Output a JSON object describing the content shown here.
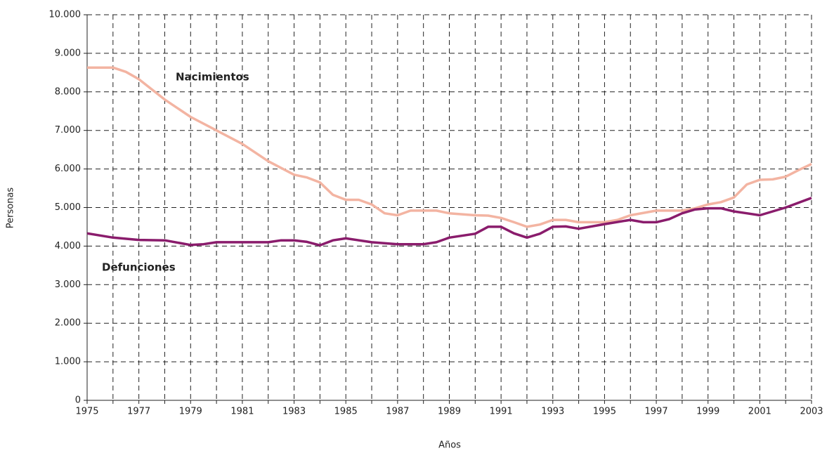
{
  "chart_data": {
    "type": "line",
    "y_label": "Personas",
    "x_label": "Años",
    "annotations": [
      "Nacimientos",
      "Defunciones"
    ],
    "xlim": [
      1975,
      2003
    ],
    "xticks": [
      1975,
      1977,
      1979,
      1981,
      1983,
      1985,
      1987,
      1989,
      1991,
      1993,
      1995,
      1997,
      1999,
      2001,
      2003
    ],
    "x_minor_ticks": [
      1976,
      1978,
      1980,
      1982,
      1984,
      1986,
      1988,
      1990,
      1992,
      1994,
      1996,
      1998,
      2000,
      2002
    ],
    "ylim": [
      0,
      10000
    ],
    "yticks": [
      0,
      {
        "value": 1000,
        "label": "1.000"
      },
      {
        "value": 2000,
        "label": "2.000"
      },
      {
        "value": 3000,
        "label": "3.000"
      },
      {
        "value": 4000,
        "label": "4.000"
      },
      {
        "value": 5000,
        "label": "5.000"
      },
      {
        "value": 6000,
        "label": "6.000"
      },
      {
        "value": 7000,
        "label": "7.000"
      },
      {
        "value": 8000,
        "label": "8.000"
      },
      {
        "value": 9000,
        "label": "9.000"
      },
      {
        "value": 10000,
        "label": "10.000"
      }
    ],
    "grid": true,
    "series": [
      {
        "name": "Nacimientos",
        "color": "#f3b4a2",
        "x": [
          1975,
          1976,
          1976.5,
          1977,
          1978,
          1979,
          1980,
          1981,
          1982,
          1983,
          1983.5,
          1984,
          1984.5,
          1985,
          1985.5,
          1986,
          1986.5,
          1987,
          1987.5,
          1988,
          1988.5,
          1989,
          1990,
          1990.5,
          1991,
          1991.5,
          1992,
          1992.5,
          1993,
          1993.5,
          1994,
          1995,
          1995.5,
          1996,
          1997,
          1998,
          1998.5,
          1999,
          1999.5,
          2000,
          2000.5,
          2001,
          2001.5,
          2002,
          2002.5,
          2003
        ],
        "values": [
          8630,
          8630,
          8520,
          8330,
          7800,
          7350,
          7000,
          6650,
          6200,
          5850,
          5780,
          5650,
          5330,
          5200,
          5200,
          5080,
          4850,
          4800,
          4920,
          4920,
          4920,
          4850,
          4800,
          4790,
          4730,
          4620,
          4500,
          4560,
          4680,
          4680,
          4620,
          4620,
          4680,
          4800,
          4920,
          4920,
          4980,
          5080,
          5140,
          5260,
          5600,
          5720,
          5730,
          5800,
          5970,
          6130
        ]
      },
      {
        "name": "Defunciones",
        "color": "#8a1c6c",
        "x": [
          1975,
          1976,
          1977,
          1978,
          1979,
          1979.5,
          1980,
          1981,
          1982,
          1982.5,
          1983,
          1983.5,
          1984,
          1984.5,
          1985,
          1986,
          1987,
          1988,
          1988.5,
          1989,
          1990,
          1990.5,
          1991,
          1991.5,
          1992,
          1992.5,
          1993,
          1993.5,
          1994,
          1995,
          1996,
          1996.5,
          1997,
          1997.5,
          1998,
          1998.5,
          1999,
          1999.5,
          2000,
          2000.5,
          2001,
          2002,
          2003
        ],
        "values": [
          4330,
          4220,
          4160,
          4150,
          4030,
          4050,
          4100,
          4100,
          4100,
          4150,
          4150,
          4110,
          4020,
          4150,
          4200,
          4100,
          4050,
          4050,
          4100,
          4220,
          4320,
          4500,
          4500,
          4330,
          4220,
          4320,
          4500,
          4510,
          4450,
          4570,
          4680,
          4620,
          4620,
          4700,
          4850,
          4950,
          4980,
          4980,
          4900,
          4850,
          4800,
          5000,
          5250
        ]
      }
    ]
  }
}
